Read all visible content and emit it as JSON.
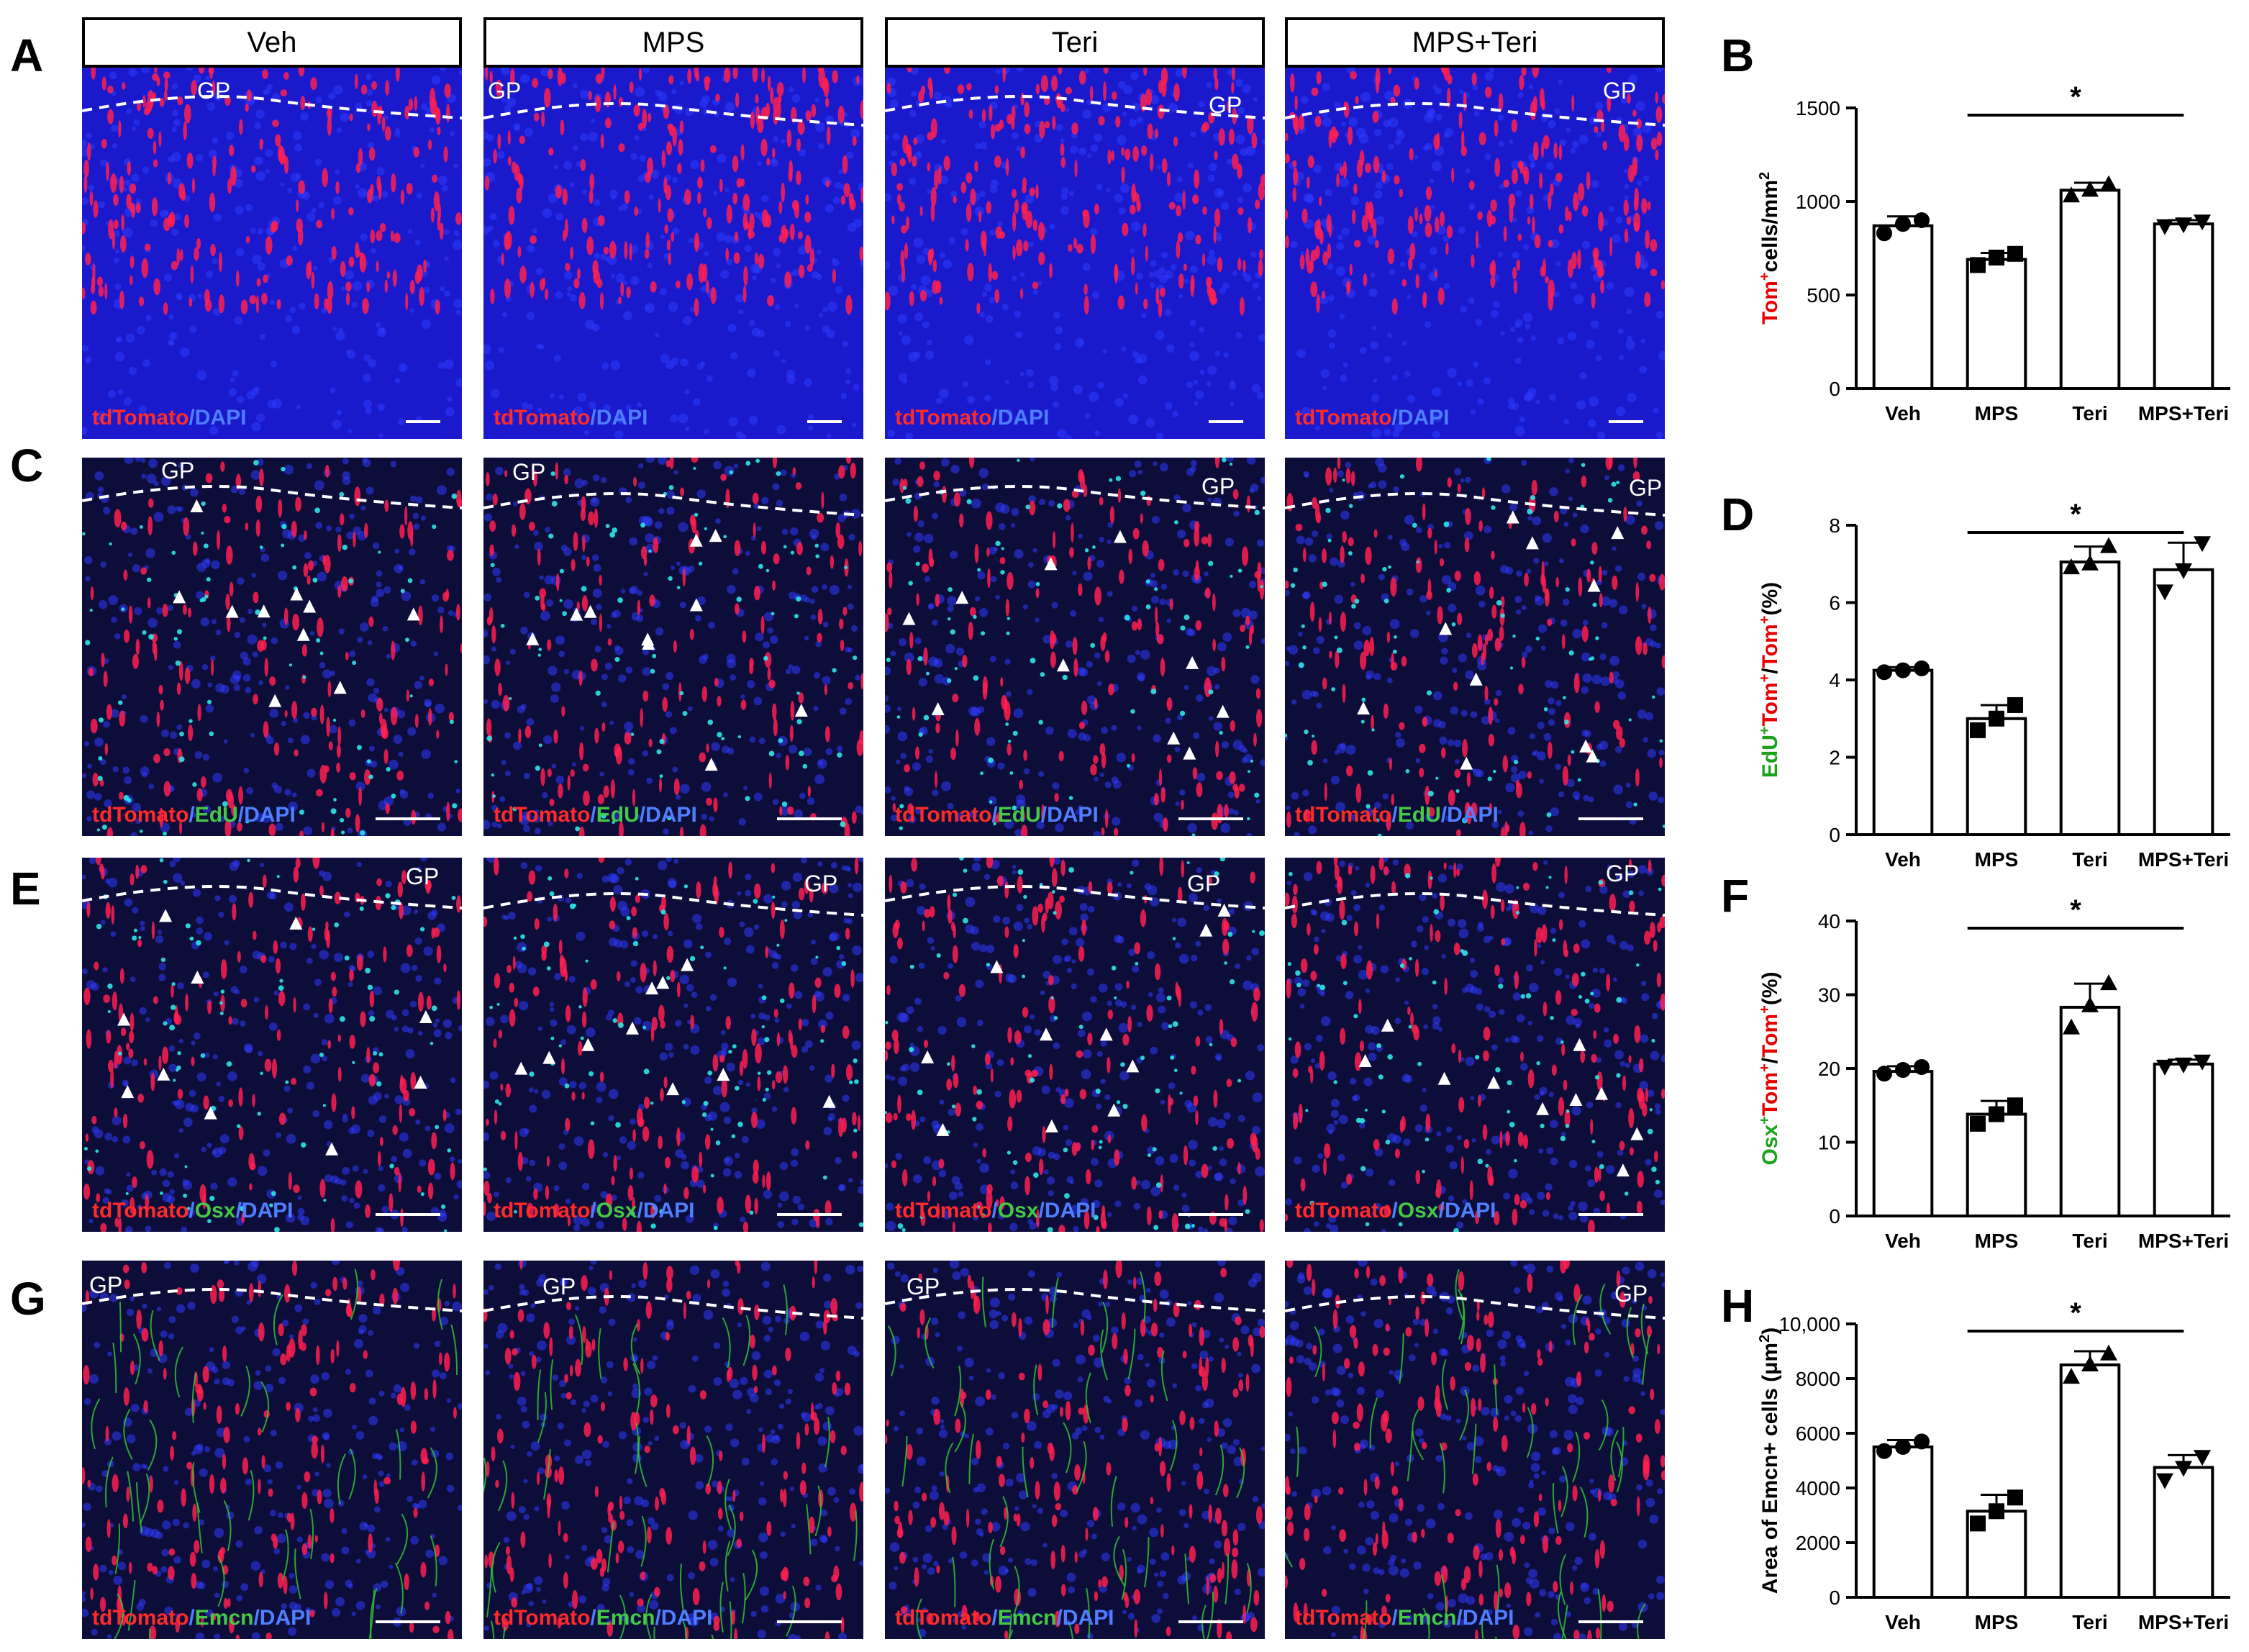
{
  "column_headers": [
    "Veh",
    "MPS",
    "Teri",
    "MPS+Teri"
  ],
  "panel_letters": [
    "A",
    "B",
    "C",
    "D",
    "E",
    "F",
    "G",
    "H"
  ],
  "gp_label": "GP",
  "image_rows": [
    {
      "stain": [
        {
          "t": "tdTomato",
          "c": "#ff2a2a"
        },
        {
          "t": "/DAPI",
          "c": "#4f7fff"
        }
      ],
      "bg": "#1a1acc",
      "marker": null
    },
    {
      "stain": [
        {
          "t": "tdTomato",
          "c": "#ff2a2a"
        },
        {
          "t": "/",
          "c": "#4f7fff"
        },
        {
          "t": "EdU",
          "c": "#45c845"
        },
        {
          "t": "/DAPI",
          "c": "#4f7fff"
        }
      ],
      "bg": "#0d0d3a",
      "marker": "#2ee6e6"
    },
    {
      "stain": [
        {
          "t": "tdTomato",
          "c": "#ff2a2a"
        },
        {
          "t": "/",
          "c": "#4f7fff"
        },
        {
          "t": "Osx",
          "c": "#45c845"
        },
        {
          "t": "/DAPI",
          "c": "#4f7fff"
        }
      ],
      "bg": "#0d0d3a",
      "marker": "#2ee6e6"
    },
    {
      "stain": [
        {
          "t": "tdTomato",
          "c": "#ff2a2a"
        },
        {
          "t": "/",
          "c": "#4f7fff"
        },
        {
          "t": "Emcn",
          "c": "#45c845"
        },
        {
          "t": "/DAPI",
          "c": "#4f7fff"
        }
      ],
      "bg": "#0d0d3a",
      "marker": "#33cc33"
    }
  ],
  "chart_data": [
    {
      "panel": "B",
      "type": "bar",
      "categories": [
        "Veh",
        "MPS",
        "Teri",
        "MPS+Teri"
      ],
      "values": [
        870,
        690,
        1060,
        880
      ],
      "errors": [
        50,
        35,
        40,
        20
      ],
      "points": [
        [
          830,
          880,
          900
        ],
        [
          660,
          700,
          720
        ],
        [
          1030,
          1060,
          1090
        ],
        [
          870,
          880,
          895
        ]
      ],
      "markers": [
        "circle",
        "square",
        "triangle",
        "triangle-down"
      ],
      "ylim": [
        0,
        1500
      ],
      "yticks": [
        0,
        500,
        1000,
        1500
      ],
      "tick_labels": [
        "0",
        "500",
        "1000",
        "1500"
      ],
      "ylabel": [
        {
          "t": "Tom",
          "c": "#e60000"
        },
        {
          "t": "+",
          "c": "#e60000",
          "sup": true
        },
        {
          "t": "cells/mm",
          "c": "#000"
        },
        {
          "t": "2",
          "c": "#000",
          "sup": true
        }
      ],
      "sig": {
        "from": 1,
        "to": 3,
        "label": "*"
      }
    },
    {
      "panel": "D",
      "type": "bar",
      "categories": [
        "Veh",
        "MPS",
        "Teri",
        "MPS+Teri"
      ],
      "values": [
        4.25,
        3.0,
        7.05,
        6.85
      ],
      "errors": [
        0.08,
        0.35,
        0.4,
        0.7
      ],
      "points": [
        [
          4.2,
          4.25,
          4.3
        ],
        [
          2.7,
          3.0,
          3.35
        ],
        [
          6.9,
          7.0,
          7.45
        ],
        [
          6.3,
          6.85,
          7.55
        ]
      ],
      "markers": [
        "circle",
        "square",
        "triangle",
        "triangle-down"
      ],
      "ylim": [
        0,
        8
      ],
      "yticks": [
        0,
        2,
        4,
        6,
        8
      ],
      "tick_labels": [
        "0",
        "2",
        "4",
        "6",
        "8"
      ],
      "ylabel": [
        {
          "t": "EdU",
          "c": "#1aa31a"
        },
        {
          "t": "+",
          "c": "#1aa31a",
          "sup": true
        },
        {
          "t": "Tom",
          "c": "#e60000"
        },
        {
          "t": "+",
          "c": "#e60000",
          "sup": true
        },
        {
          "t": "/",
          "c": "#000"
        },
        {
          "t": "Tom",
          "c": "#e60000"
        },
        {
          "t": "+",
          "c": "#e60000",
          "sup": true
        },
        {
          "t": "(%)",
          "c": "#000"
        }
      ],
      "sig": {
        "from": 1,
        "to": 3,
        "label": "*"
      }
    },
    {
      "panel": "F",
      "type": "bar",
      "categories": [
        "Veh",
        "MPS",
        "Teri",
        "MPS+Teri"
      ],
      "values": [
        19.6,
        13.8,
        28.3,
        20.6
      ],
      "errors": [
        0.7,
        1.8,
        3.2,
        0.6
      ],
      "points": [
        [
          19.3,
          19.8,
          20.2
        ],
        [
          12.5,
          13.8,
          15.0
        ],
        [
          25.5,
          28.5,
          31.5
        ],
        [
          20.3,
          20.6,
          21.0
        ]
      ],
      "markers": [
        "circle",
        "square",
        "triangle",
        "triangle-down"
      ],
      "ylim": [
        0,
        40
      ],
      "yticks": [
        0,
        10,
        20,
        30,
        40
      ],
      "tick_labels": [
        "0",
        "10",
        "20",
        "30",
        "40"
      ],
      "ylabel": [
        {
          "t": "Osx",
          "c": "#1aa31a"
        },
        {
          "t": "+",
          "c": "#1aa31a",
          "sup": true
        },
        {
          "t": "Tom",
          "c": "#e60000"
        },
        {
          "t": "+",
          "c": "#e60000",
          "sup": true
        },
        {
          "t": "/",
          "c": "#000"
        },
        {
          "t": "Tom",
          "c": "#e60000"
        },
        {
          "t": "+",
          "c": "#e60000",
          "sup": true
        },
        {
          "t": "(%)",
          "c": "#000"
        }
      ],
      "sig": {
        "from": 1,
        "to": 3,
        "label": "*"
      }
    },
    {
      "panel": "H",
      "type": "bar",
      "categories": [
        "Veh",
        "MPS",
        "Teri",
        "MPS+Teri"
      ],
      "values": [
        5500,
        3150,
        8500,
        4750
      ],
      "errors": [
        250,
        600,
        500,
        450
      ],
      "points": [
        [
          5350,
          5500,
          5700
        ],
        [
          2700,
          3150,
          3650
        ],
        [
          8050,
          8500,
          8900
        ],
        [
          4300,
          4750,
          5150
        ]
      ],
      "markers": [
        "circle",
        "square",
        "triangle",
        "triangle-down"
      ],
      "ylim": [
        0,
        10000
      ],
      "yticks": [
        0,
        2000,
        4000,
        6000,
        8000,
        10000
      ],
      "tick_labels": [
        "0",
        "2000",
        "4000",
        "6000",
        "8000",
        "10,000"
      ],
      "ylabel": [
        {
          "t": "Area of Emcn+ cells (μm",
          "c": "#000"
        },
        {
          "t": "2",
          "c": "#000",
          "sup": true
        },
        {
          "t": ")",
          "c": "#000"
        }
      ],
      "sig": {
        "from": 1,
        "to": 3,
        "label": "*"
      }
    }
  ]
}
